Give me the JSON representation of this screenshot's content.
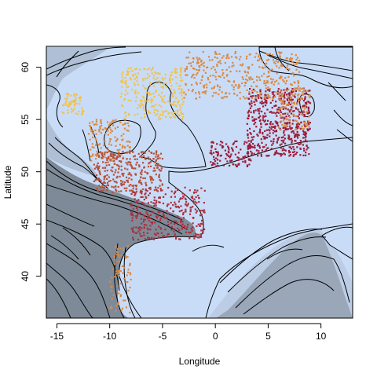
{
  "chart_data": {
    "type": "scatter",
    "xlabel": "Longitude",
    "ylabel": "Latitude",
    "xlim": [
      -16,
      13
    ],
    "ylim": [
      36,
      62
    ],
    "xticks": [
      -15,
      -10,
      -5,
      0,
      5,
      10
    ],
    "yticks": [
      40,
      45,
      50,
      55,
      60
    ],
    "xtick_labels": [
      "-15",
      "-10",
      "-5",
      "0",
      "5",
      "10"
    ],
    "ytick_labels": [
      "40",
      "45",
      "50",
      "55",
      "60"
    ],
    "colors": {
      "sea": "#c9dcf7",
      "deep_water": "#7e8a98",
      "shelf_edge": "#aebfd6",
      "land": "#c9dcf7",
      "contour": "#000000",
      "points_yellow": "#f0c24d",
      "points_orange": "#d98a45",
      "points_brown": "#b5513a",
      "points_crimson": "#9b1d3a",
      "points_darkred": "#a8323f"
    },
    "point_groups": [
      {
        "color": "points_crimson",
        "x": [
          3.0,
          9.0
        ],
        "y": [
          51.5,
          58.0
        ],
        "n": 520
      },
      {
        "color": "points_crimson",
        "x": [
          -0.5,
          3.5
        ],
        "y": [
          50.5,
          53.0
        ],
        "n": 120
      },
      {
        "color": "points_orange",
        "x": [
          -3.0,
          8.0
        ],
        "y": [
          57.0,
          61.5
        ],
        "n": 360
      },
      {
        "color": "points_orange",
        "x": [
          6.0,
          9.0
        ],
        "y": [
          54.0,
          58.0
        ],
        "n": 110
      },
      {
        "color": "points_yellow",
        "x": [
          -9.0,
          -3.0
        ],
        "y": [
          55.0,
          60.0
        ],
        "n": 260
      },
      {
        "color": "points_yellow",
        "x": [
          -14.5,
          -12.5
        ],
        "y": [
          55.5,
          57.5
        ],
        "n": 60
      },
      {
        "color": "points_orange",
        "x": [
          -12.0,
          -8.0
        ],
        "y": [
          51.0,
          55.0
        ],
        "n": 140
      },
      {
        "color": "points_brown",
        "x": [
          -11.5,
          -5.0
        ],
        "y": [
          48.0,
          52.0
        ],
        "n": 320
      },
      {
        "color": "points_darkred",
        "x": [
          -8.0,
          -1.0
        ],
        "y": [
          43.5,
          48.5
        ],
        "n": 330
      },
      {
        "color": "points_orange",
        "x": [
          -10.0,
          -8.0
        ],
        "y": [
          36.5,
          43.0
        ],
        "n": 70
      }
    ]
  }
}
